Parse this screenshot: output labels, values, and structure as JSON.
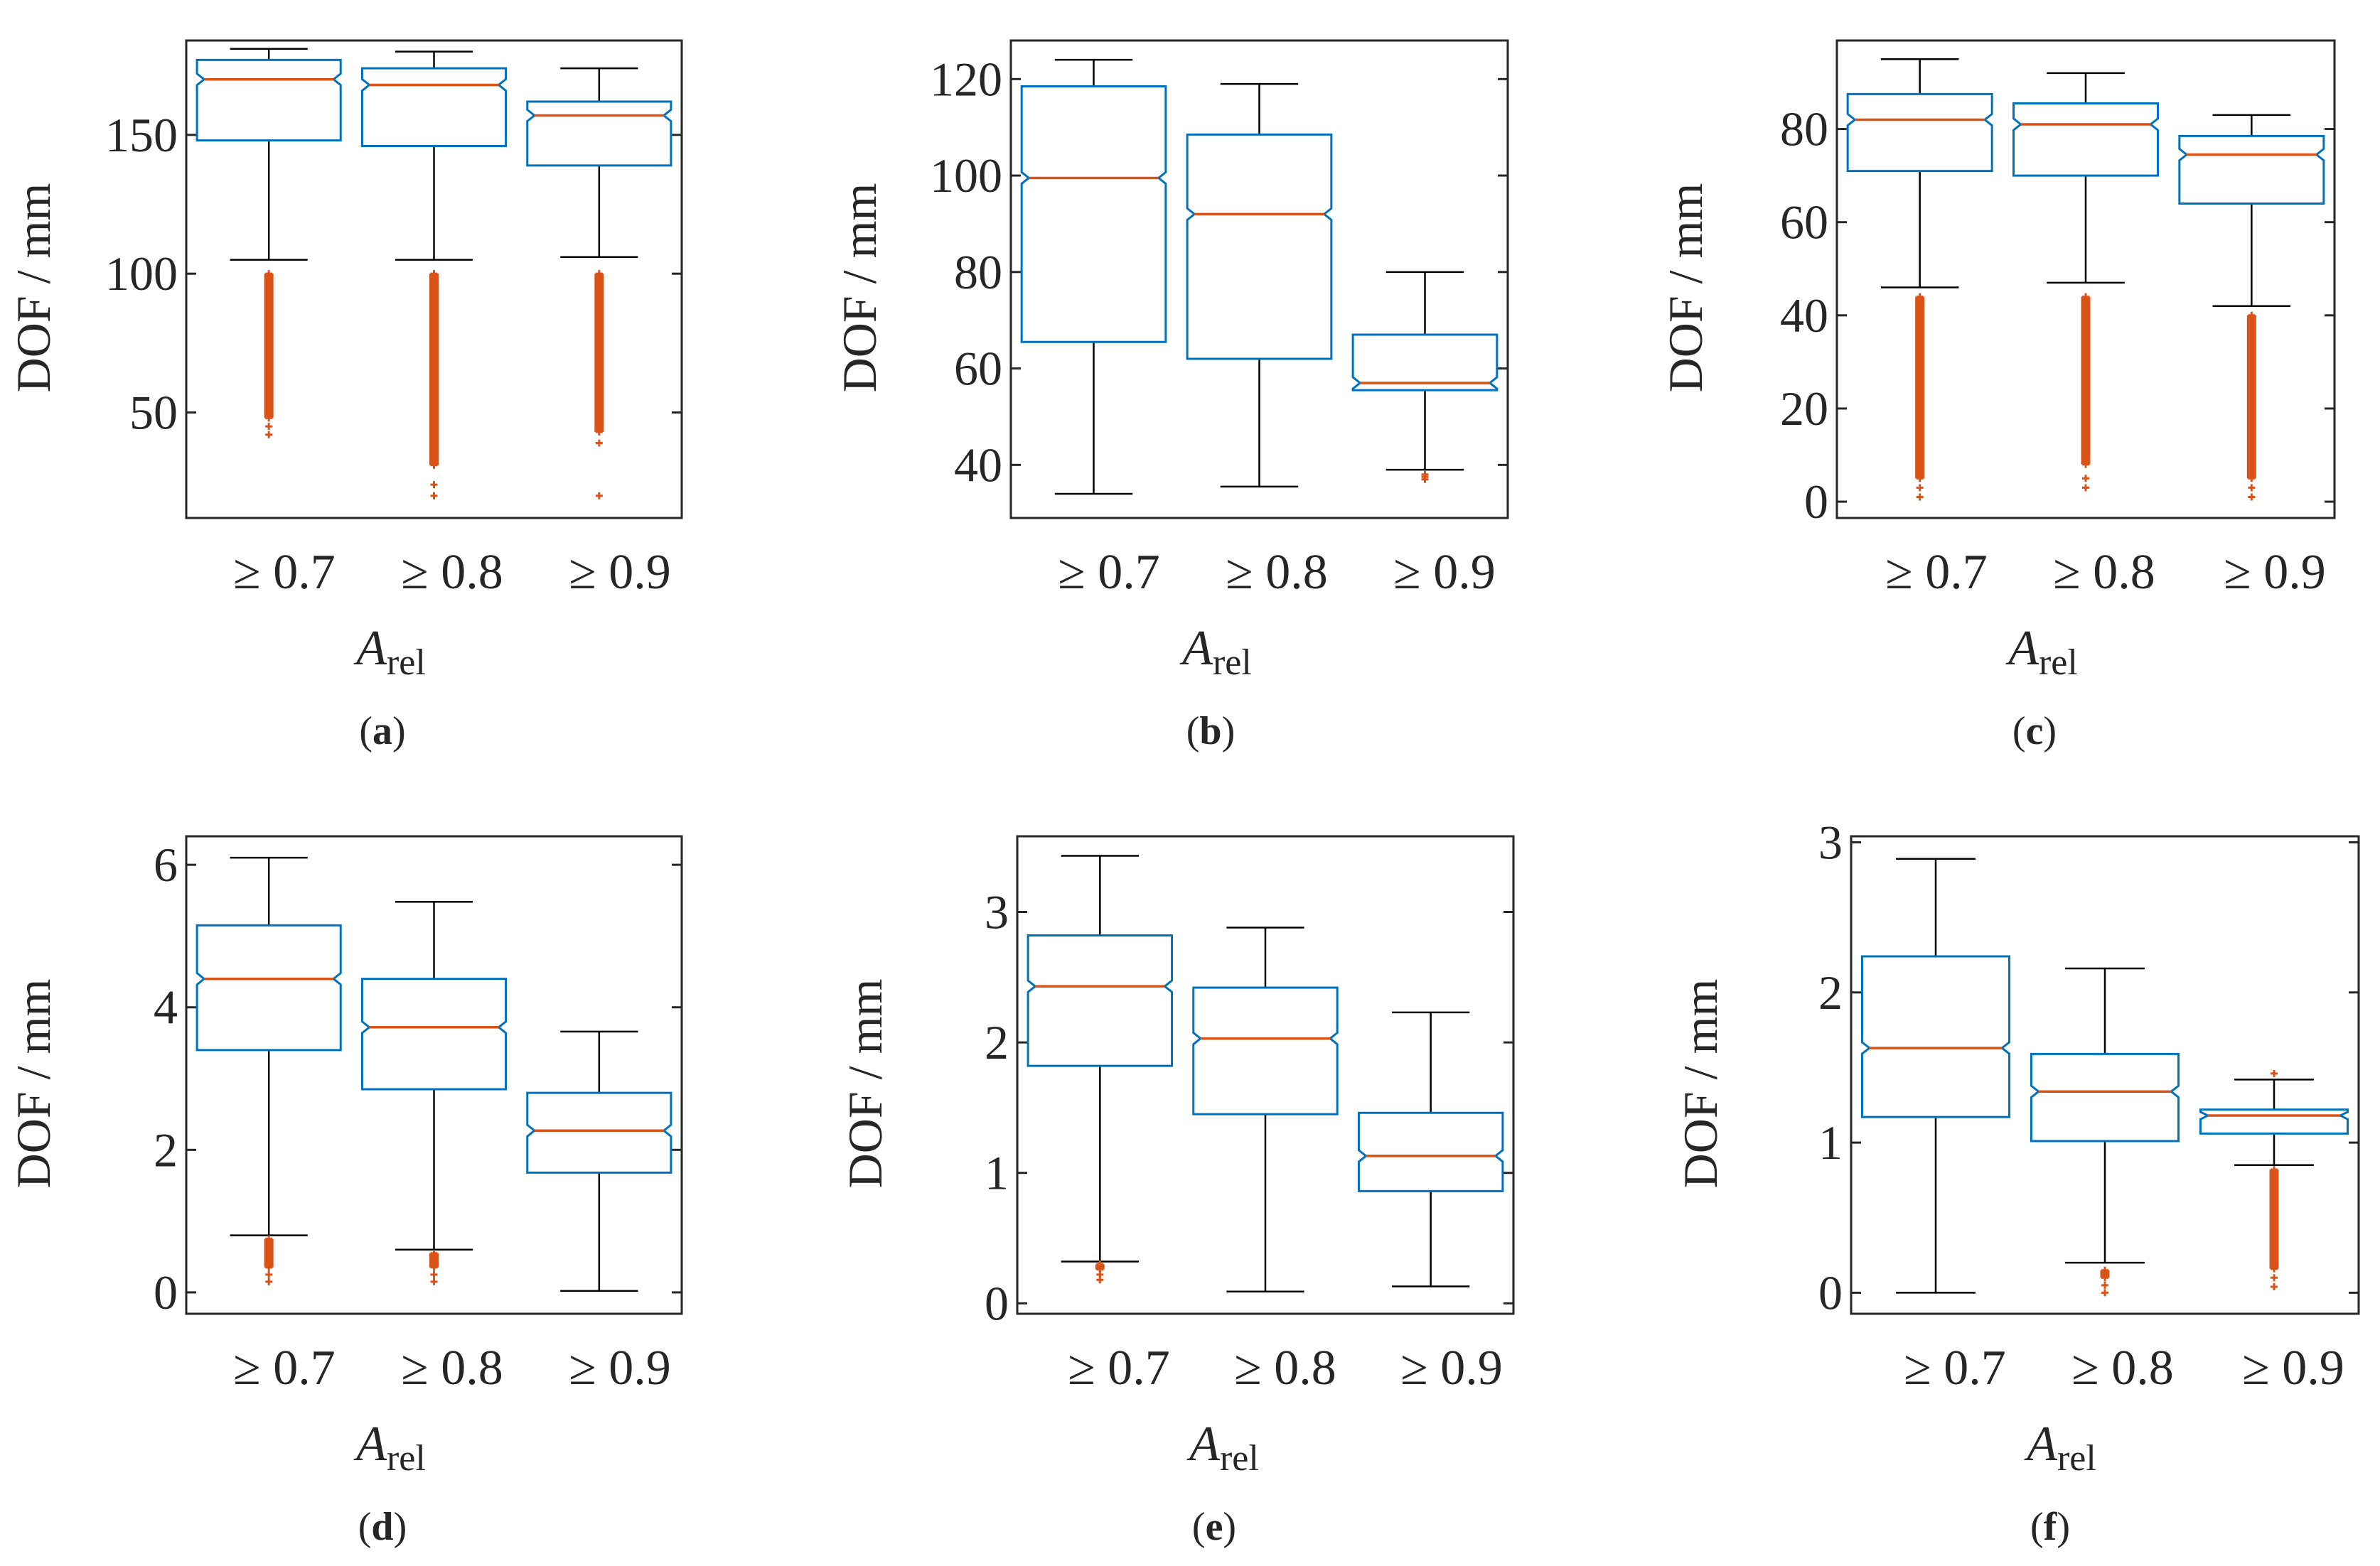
{
  "chart_data": [
    {
      "panel": "a",
      "type": "boxplot",
      "ylabel": "DOF / mm",
      "xlabel_main": "A",
      "xlabel_sub": "rel",
      "categories": [
        "≥ 0.7",
        "≥ 0.8",
        "≥ 0.9"
      ],
      "ylim": [
        12,
        184
      ],
      "yticks": [
        50,
        100,
        150
      ],
      "ytick_labels": [
        "50",
        "100",
        "150"
      ],
      "boxes": [
        {
          "q1": 148,
          "median": 170,
          "q3": 177,
          "whisker_low": 105,
          "whisker_high": 181,
          "outliers": [
            42,
            45,
            48,
            52,
            56,
            60,
            65,
            70,
            75,
            80,
            85,
            90,
            95,
            100
          ]
        },
        {
          "q1": 146,
          "median": 168,
          "q3": 174,
          "whisker_low": 105,
          "whisker_high": 180,
          "outliers": [
            20,
            24,
            31,
            43,
            46,
            50,
            55,
            60,
            65,
            70,
            75,
            80,
            85,
            90,
            95,
            100
          ]
        },
        {
          "q1": 139,
          "median": 157,
          "q3": 162,
          "whisker_low": 106,
          "whisker_high": 174,
          "outliers": [
            20,
            39,
            43,
            47,
            50,
            55,
            60,
            65,
            70,
            75,
            80,
            85,
            90,
            95,
            100
          ]
        }
      ]
    },
    {
      "panel": "b",
      "type": "boxplot",
      "ylabel": "DOF / mm",
      "xlabel_main": "A",
      "xlabel_sub": "rel",
      "categories": [
        "≥ 0.7",
        "≥ 0.8",
        "≥ 0.9"
      ],
      "ylim": [
        29,
        128
      ],
      "yticks": [
        40,
        60,
        80,
        100,
        120
      ],
      "ytick_labels": [
        "40",
        "60",
        "80",
        "100",
        "120"
      ],
      "boxes": [
        {
          "q1": 65.5,
          "median": 99.5,
          "q3": 118.5,
          "whisker_low": 34,
          "whisker_high": 124,
          "outliers": []
        },
        {
          "q1": 62,
          "median": 92,
          "q3": 108.5,
          "whisker_low": 35.5,
          "whisker_high": 119,
          "outliers": []
        },
        {
          "q1": 55.5,
          "median": 57,
          "q3": 67,
          "whisker_low": 39,
          "whisker_high": 80,
          "outliers": [
            37,
            37.5,
            38
          ]
        }
      ]
    },
    {
      "panel": "c",
      "type": "boxplot",
      "ylabel": "DOF / mm",
      "xlabel_main": "A",
      "xlabel_sub": "rel",
      "categories": [
        "≥ 0.7",
        "≥ 0.8",
        "≥ 0.9"
      ],
      "ylim": [
        -3.5,
        99
      ],
      "yticks": [
        0,
        20,
        40,
        60,
        80
      ],
      "ytick_labels": [
        "0",
        "20",
        "40",
        "60",
        "80"
      ],
      "boxes": [
        {
          "q1": 71,
          "median": 82,
          "q3": 87.5,
          "whisker_low": 46,
          "whisker_high": 95,
          "outliers": [
            1,
            3,
            5,
            8,
            12,
            16,
            20,
            25,
            30,
            35,
            40,
            44
          ]
        },
        {
          "q1": 70,
          "median": 81,
          "q3": 85.5,
          "whisker_low": 47,
          "whisker_high": 92,
          "outliers": [
            3,
            5,
            8,
            12,
            16,
            20,
            25,
            30,
            35,
            40,
            44
          ]
        },
        {
          "q1": 64,
          "median": 74.5,
          "q3": 78.5,
          "whisker_low": 42,
          "whisker_high": 83,
          "outliers": [
            1,
            3,
            5,
            8,
            12,
            16,
            20,
            25,
            30,
            35,
            40
          ]
        }
      ]
    },
    {
      "panel": "d",
      "type": "boxplot",
      "ylabel": "DOF / mm",
      "xlabel_main": "A",
      "xlabel_sub": "rel",
      "categories": [
        "≥ 0.7",
        "≥ 0.8",
        "≥ 0.9"
      ],
      "ylim": [
        -0.3,
        6.4
      ],
      "yticks": [
        0,
        2,
        4,
        6
      ],
      "ytick_labels": [
        "0",
        "2",
        "4",
        "6"
      ],
      "boxes": [
        {
          "q1": 3.4,
          "median": 4.4,
          "q3": 5.15,
          "whisker_low": 0.8,
          "whisker_high": 6.1,
          "outliers": [
            0.15,
            0.25,
            0.35,
            0.45,
            0.55,
            0.65,
            0.75
          ]
        },
        {
          "q1": 2.85,
          "median": 3.72,
          "q3": 4.4,
          "whisker_low": 0.6,
          "whisker_high": 5.48,
          "outliers": [
            0.15,
            0.25,
            0.35,
            0.45,
            0.55
          ]
        },
        {
          "q1": 1.68,
          "median": 2.27,
          "q3": 2.8,
          "whisker_low": 0.02,
          "whisker_high": 3.66,
          "outliers": []
        }
      ]
    },
    {
      "panel": "e",
      "type": "boxplot",
      "ylabel": "DOF / mm",
      "xlabel_main": "A",
      "xlabel_sub": "rel",
      "categories": [
        "≥ 0.7",
        "≥ 0.8",
        "≥ 0.9"
      ],
      "ylim": [
        -0.08,
        3.58
      ],
      "yticks": [
        0,
        1,
        2,
        3
      ],
      "ytick_labels": [
        "0",
        "1",
        "2",
        "3"
      ],
      "boxes": [
        {
          "q1": 1.82,
          "median": 2.43,
          "q3": 2.82,
          "whisker_low": 0.32,
          "whisker_high": 3.43,
          "outliers": [
            0.18,
            0.22,
            0.26,
            0.3
          ]
        },
        {
          "q1": 1.45,
          "median": 2.03,
          "q3": 2.42,
          "whisker_low": 0.09,
          "whisker_high": 2.88,
          "outliers": []
        },
        {
          "q1": 0.86,
          "median": 1.13,
          "q3": 1.46,
          "whisker_low": 0.13,
          "whisker_high": 2.23,
          "outliers": []
        }
      ]
    },
    {
      "panel": "f",
      "type": "boxplot",
      "ylabel": "DOF / mm",
      "xlabel_main": "A",
      "xlabel_sub": "rel",
      "categories": [
        "≥ 0.7",
        "≥ 0.8",
        "≥ 0.9"
      ],
      "ylim": [
        -0.14,
        3.04
      ],
      "yticks": [
        0,
        1,
        2,
        3
      ],
      "ytick_labels": [
        "0",
        "1",
        "2",
        "3"
      ],
      "boxes": [
        {
          "q1": 1.17,
          "median": 1.63,
          "q3": 2.24,
          "whisker_low": 0.0,
          "whisker_high": 2.89,
          "outliers": []
        },
        {
          "q1": 1.01,
          "median": 1.34,
          "q3": 1.59,
          "whisker_low": 0.2,
          "whisker_high": 2.16,
          "outliers": [
            0.0,
            0.05,
            0.1,
            0.15
          ]
        },
        {
          "q1": 1.06,
          "median": 1.18,
          "q3": 1.22,
          "whisker_low": 0.85,
          "whisker_high": 1.42,
          "outliers": [
            1.46,
            0.04,
            0.1,
            0.16,
            0.22,
            0.28,
            0.34,
            0.4,
            0.46,
            0.52,
            0.58,
            0.64,
            0.7,
            0.76,
            0.82
          ]
        }
      ]
    }
  ]
}
